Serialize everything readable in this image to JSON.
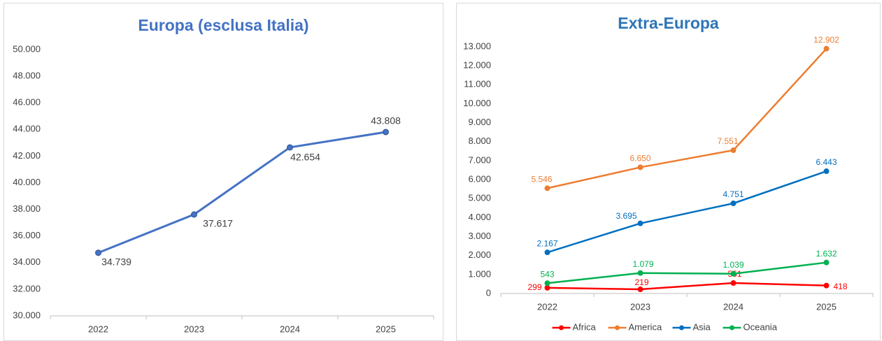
{
  "chart_data": [
    {
      "type": "line",
      "title": "Europa (esclusa Italia)",
      "categories": [
        "2022",
        "2023",
        "2024",
        "2025"
      ],
      "series": [
        {
          "name": null,
          "color": "#4472c4",
          "values": [
            34739,
            37617,
            42654,
            43808
          ],
          "value_labels": [
            "34.739",
            "37.617",
            "42.654",
            "43.808"
          ]
        }
      ],
      "ylim": [
        30000,
        50000
      ],
      "yticks": [
        {
          "value": 30000,
          "label": "30.000"
        },
        {
          "value": 32000,
          "label": "32.000"
        },
        {
          "value": 34000,
          "label": "34.000"
        },
        {
          "value": 36000,
          "label": "36.000"
        },
        {
          "value": 38000,
          "label": "38.000"
        },
        {
          "value": 40000,
          "label": "40.000"
        },
        {
          "value": 42000,
          "label": "42.000"
        },
        {
          "value": 44000,
          "label": "44.000"
        },
        {
          "value": 46000,
          "label": "46.000"
        },
        {
          "value": 48000,
          "label": "48.000"
        },
        {
          "value": 50000,
          "label": "50.000"
        }
      ],
      "title_color": "#4472c4",
      "grid": false,
      "legend": false
    },
    {
      "type": "line",
      "title": "Extra-Europa",
      "categories": [
        "2022",
        "2023",
        "2024",
        "2025"
      ],
      "series": [
        {
          "name": "Africa",
          "color": "#ff0000",
          "values": [
            299,
            219,
            551,
            418
          ],
          "value_labels": [
            "299",
            "219",
            "551",
            "418"
          ]
        },
        {
          "name": "America",
          "color": "#ed7d31",
          "values": [
            5546,
            6650,
            7551,
            12902
          ],
          "value_labels": [
            "5.546",
            "6.650",
            "7.551",
            "12.902"
          ]
        },
        {
          "name": "Asia",
          "color": "#0070c0",
          "values": [
            2167,
            3695,
            4751,
            6443
          ],
          "value_labels": [
            "2.167",
            "3.695",
            "4.751",
            "6.443"
          ]
        },
        {
          "name": "Oceania",
          "color": "#00b050",
          "values": [
            543,
            1079,
            1039,
            1632
          ],
          "value_labels": [
            "543",
            "1.079",
            "1.039",
            "1.632"
          ]
        }
      ],
      "ylim": [
        0,
        13000
      ],
      "yticks": [
        0,
        {
          "value": 1000,
          "label": "1.000"
        },
        {
          "value": 2000,
          "label": "2.000"
        },
        {
          "value": 3000,
          "label": "3.000"
        },
        {
          "value": 4000,
          "label": "4.000"
        },
        {
          "value": 5000,
          "label": "5.000"
        },
        {
          "value": 6000,
          "label": "6.000"
        },
        {
          "value": 7000,
          "label": "7.000"
        },
        {
          "value": 8000,
          "label": "8.000"
        },
        {
          "value": 9000,
          "label": "9.000"
        },
        {
          "value": 10000,
          "label": "10.000"
        },
        {
          "value": 11000,
          "label": "11.000"
        },
        {
          "value": 12000,
          "label": "12.000"
        },
        {
          "value": 13000,
          "label": "13.000"
        }
      ],
      "title_color": "#2e75b6",
      "grid": false,
      "legend": "bottom"
    }
  ]
}
